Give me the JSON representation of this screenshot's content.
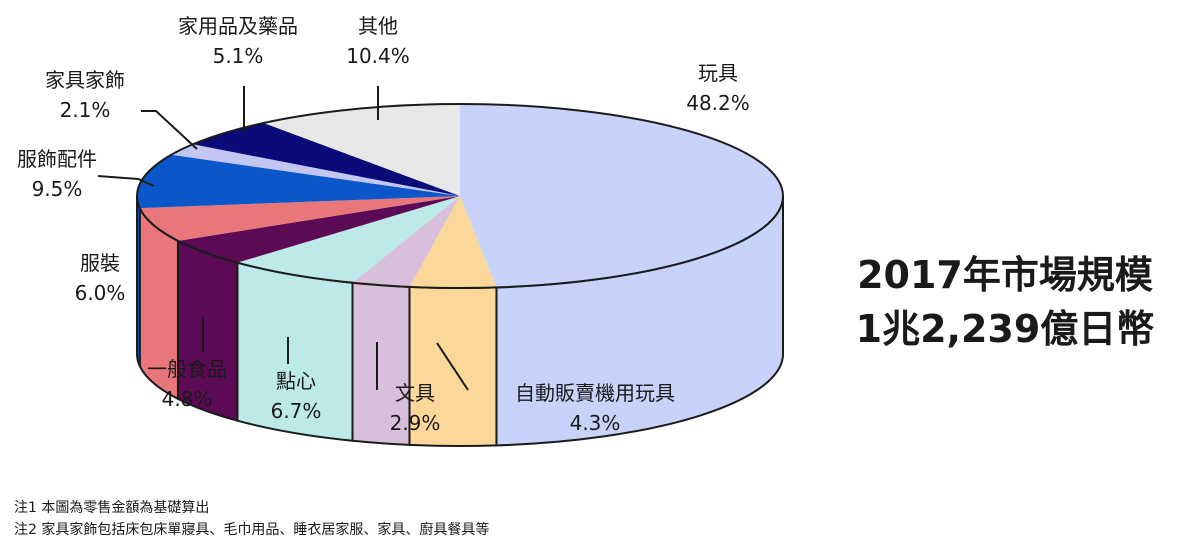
{
  "chart_data": {
    "type": "pie",
    "title": "2017年市場規模",
    "subtitle": "1兆2,239億日幣",
    "slices": [
      {
        "label": "玩具",
        "value": 48.2,
        "value_text": "48.2%",
        "top": "#c8d3fb",
        "side": "#c8d3fb"
      },
      {
        "label": "自動販賣機用玩具",
        "value": 4.3,
        "value_text": "4.3%",
        "top": "#fcd79a",
        "side": "#fcd79a"
      },
      {
        "label": "文具",
        "value": 2.9,
        "value_text": "2.9%",
        "top": "#d8bfdb",
        "side": "#d8bfdb"
      },
      {
        "label": "點心",
        "value": 6.7,
        "value_text": "6.7%",
        "top": "#bde9e8",
        "side": "#bde9e8"
      },
      {
        "label": "一般食品",
        "value": 4.8,
        "value_text": "4.8%",
        "top": "#5c0a55",
        "side": "#5c0a55"
      },
      {
        "label": "服裝",
        "value": 6.0,
        "value_text": "6.0%",
        "top": "#e8767a",
        "side": "#e8767a"
      },
      {
        "label": "服飾配件",
        "value": 9.5,
        "value_text": "9.5%",
        "top": "#0b56c9",
        "side": "#0b56c9"
      },
      {
        "label": "家具家飾",
        "value": 2.1,
        "value_text": "2.1%",
        "top": "#c3c6f3",
        "side": "#c3c6f3"
      },
      {
        "label": "家用品及藥品",
        "value": 5.1,
        "value_text": "5.1%",
        "top": "#0a0a78",
        "side": "#0a0a78"
      },
      {
        "label": "其他",
        "value": 10.4,
        "value_text": "10.4%",
        "top": "#e8e8e8",
        "side": "#e8e8e8"
      }
    ]
  },
  "notes": [
    "注1 本圖為零售金額為基礎算出",
    "注2 家具家飾包括床包床單寢具、毛巾用品、睡衣居家服、家具、廚具餐具等"
  ]
}
